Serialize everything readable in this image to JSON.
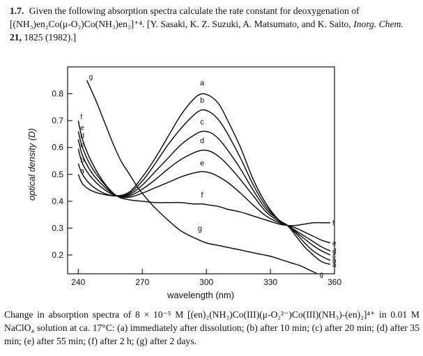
{
  "problem": {
    "number": "1.7.",
    "intro": "Given the following absorption spectra calculate the rate constant for deoxygenation of [(NH₃)en₂Co(μ-O₂)Co(NH₃)en₂]⁺⁴.",
    "citation_prefix": "[Y. Sasaki, K. Z. Suzuki, A. Matsumato, and K. Saito,",
    "journal": "Inorg. Chem.",
    "volume": "21,",
    "citation_suffix": "1825 (1982).]"
  },
  "caption": "Change in absorption spectra of 8 × 10⁻⁵ M [(en)₂(NH₃)Co(III)(μ-O₂²⁻)Co(III)(NH₃)-(en)₂]⁴⁺ in 0.01 M NaClO₄ solution at ca. 17°C: (a) immediately after dissolution; (b) after 10 min; (c) after 20 min; (d) after 35 min; (e) after 55 min; (f) after 2 h; (g) after 2 days.",
  "chart_data": {
    "type": "line",
    "xlabel": "wavelength (nm)",
    "ylabel": "optical density (D)",
    "xlim": [
      235,
      360
    ],
    "ylim": [
      0.13,
      0.9
    ],
    "x_ticks": [
      240,
      270,
      300,
      330,
      360
    ],
    "y_ticks": [
      0.2,
      0.3,
      0.4,
      0.5,
      0.6,
      0.7,
      0.8
    ],
    "grid": false,
    "series": [
      {
        "name": "a",
        "x": [
          240,
          242,
          246,
          252,
          258,
          264,
          270,
          276,
          282,
          288,
          294,
          298,
          302,
          306,
          310,
          316,
          322,
          328,
          334,
          338,
          342,
          346,
          350,
          354,
          358
        ],
        "y": [
          0.5,
          0.465,
          0.44,
          0.425,
          0.42,
          0.435,
          0.49,
          0.56,
          0.64,
          0.72,
          0.78,
          0.8,
          0.79,
          0.76,
          0.7,
          0.6,
          0.48,
          0.39,
          0.33,
          0.31,
          0.27,
          0.23,
          0.2,
          0.175,
          0.165
        ]
      },
      {
        "name": "b",
        "x": [
          240,
          242,
          246,
          252,
          258,
          264,
          270,
          276,
          282,
          288,
          294,
          298,
          302,
          306,
          310,
          316,
          322,
          328,
          334,
          338,
          342,
          346,
          350,
          354,
          358
        ],
        "y": [
          0.54,
          0.5,
          0.46,
          0.43,
          0.42,
          0.43,
          0.475,
          0.54,
          0.61,
          0.67,
          0.72,
          0.74,
          0.73,
          0.7,
          0.65,
          0.56,
          0.46,
          0.38,
          0.33,
          0.31,
          0.28,
          0.245,
          0.215,
          0.195,
          0.18
        ]
      },
      {
        "name": "c",
        "x": [
          240,
          242,
          246,
          252,
          258,
          264,
          270,
          276,
          282,
          288,
          294,
          298,
          302,
          306,
          310,
          316,
          322,
          328,
          334,
          338,
          342,
          346,
          350,
          354,
          358
        ],
        "y": [
          0.595,
          0.54,
          0.49,
          0.445,
          0.42,
          0.425,
          0.46,
          0.51,
          0.56,
          0.61,
          0.645,
          0.66,
          0.655,
          0.63,
          0.59,
          0.52,
          0.44,
          0.37,
          0.33,
          0.31,
          0.285,
          0.26,
          0.235,
          0.215,
          0.2
        ]
      },
      {
        "name": "d",
        "x": [
          240,
          242,
          246,
          252,
          258,
          264,
          270,
          276,
          282,
          288,
          294,
          298,
          302,
          306,
          310,
          316,
          322,
          328,
          334,
          338,
          342,
          346,
          350,
          354,
          358
        ],
        "y": [
          0.63,
          0.57,
          0.51,
          0.455,
          0.42,
          0.42,
          0.445,
          0.48,
          0.52,
          0.555,
          0.58,
          0.59,
          0.585,
          0.565,
          0.535,
          0.48,
          0.42,
          0.36,
          0.325,
          0.31,
          0.29,
          0.27,
          0.25,
          0.23,
          0.215
        ]
      },
      {
        "name": "e",
        "x": [
          240,
          242,
          246,
          252,
          258,
          264,
          270,
          276,
          282,
          288,
          294,
          298,
          302,
          306,
          310,
          316,
          322,
          328,
          334,
          338,
          342,
          346,
          350,
          354,
          358
        ],
        "y": [
          0.66,
          0.6,
          0.53,
          0.465,
          0.42,
          0.415,
          0.43,
          0.45,
          0.47,
          0.49,
          0.505,
          0.51,
          0.505,
          0.49,
          0.47,
          0.43,
          0.385,
          0.345,
          0.32,
          0.31,
          0.3,
          0.285,
          0.27,
          0.255,
          0.245
        ]
      },
      {
        "name": "f",
        "x": [
          240,
          242,
          246,
          252,
          258,
          264,
          270,
          276,
          282,
          288,
          294,
          298,
          302,
          306,
          310,
          316,
          322,
          328,
          334,
          338,
          342,
          346,
          350,
          354,
          358
        ],
        "y": [
          0.7,
          0.63,
          0.55,
          0.47,
          0.42,
          0.405,
          0.4,
          0.395,
          0.395,
          0.395,
          0.39,
          0.39,
          0.385,
          0.38,
          0.37,
          0.36,
          0.345,
          0.33,
          0.315,
          0.31,
          0.31,
          0.315,
          0.32,
          0.32,
          0.32
        ]
      },
      {
        "name": "g",
        "x": [
          244,
          248,
          252,
          256,
          260,
          264,
          268,
          272,
          276,
          282,
          288,
          294,
          300,
          306,
          312,
          318,
          324,
          330,
          336,
          340,
          344,
          348,
          352
        ],
        "y": [
          0.85,
          0.78,
          0.7,
          0.62,
          0.55,
          0.5,
          0.45,
          0.41,
          0.375,
          0.33,
          0.29,
          0.265,
          0.245,
          0.235,
          0.225,
          0.215,
          0.205,
          0.195,
          0.18,
          0.17,
          0.16,
          0.145,
          0.13
        ]
      }
    ]
  }
}
